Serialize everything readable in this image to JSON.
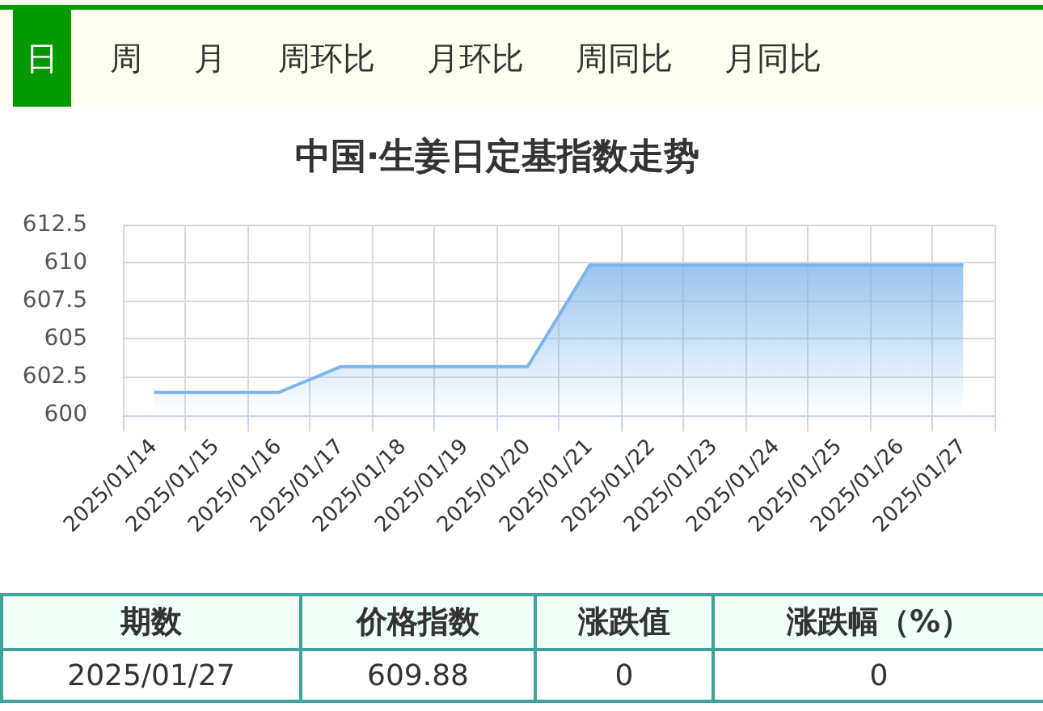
{
  "chart_data": [
    {
      "type": "other",
      "annotations": [
        "日",
        "周",
        "月",
        "周环比",
        "月环比",
        "周同比",
        "月同比"
      ]
    },
    {
      "type": "area",
      "title": "中国·生姜日定基指数走势",
      "categories": [
        "2025/01/14",
        "2025/01/15",
        "2025/01/16",
        "2025/01/17",
        "2025/01/18",
        "2025/01/19",
        "2025/01/20",
        "2025/01/21",
        "2025/01/22",
        "2025/01/23",
        "2025/01/24",
        "2025/01/25",
        "2025/01/26",
        "2025/01/27"
      ],
      "series": [
        {
          "color": "#7cb5ec",
          "values": [
            601.5,
            601.5,
            601.5,
            603.2,
            603.2,
            603.2,
            603.2,
            609.88,
            609.88,
            609.88,
            609.88,
            609.88,
            609.88,
            609.88
          ]
        }
      ],
      "ylim": [
        600,
        612.5
      ],
      "yticks": [
        600,
        602.5,
        605,
        607.5,
        610,
        612.5
      ],
      "grid": true,
      "marker": "none"
    },
    {
      "type": "other",
      "categories": [
        "期数",
        "价格指数",
        "涨跌值",
        "涨跌幅（%）"
      ],
      "annotations": [
        "2025/01/27",
        "609.88",
        "0",
        "0"
      ]
    }
  ]
}
